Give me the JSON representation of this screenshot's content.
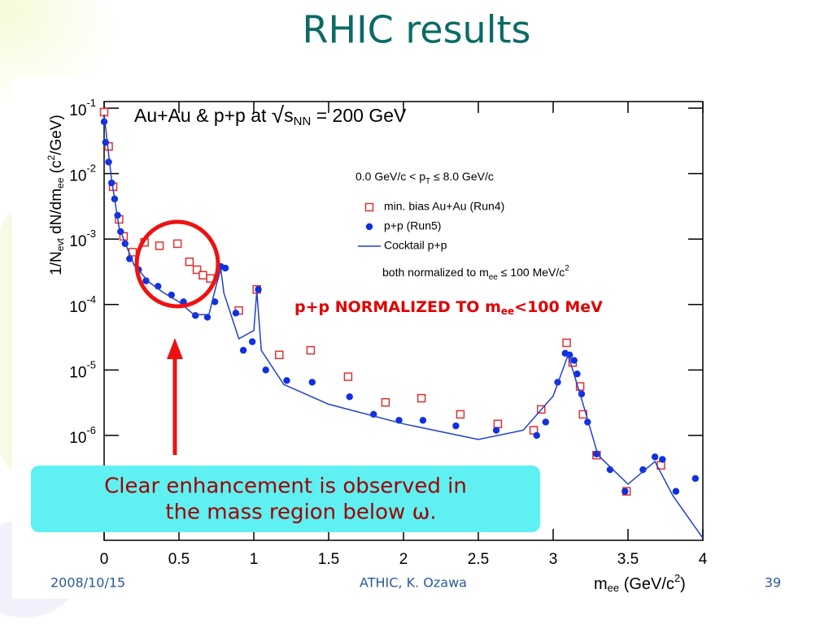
{
  "slide": {
    "title": "RHIC results",
    "date": "2008/10/15",
    "footer": "ATHIC, K. Ozawa",
    "page": "39",
    "callout": [
      "Clear enhancement is observed in",
      "the mass region below ω."
    ]
  },
  "chart_data": {
    "type": "scatter",
    "log_y": true,
    "energy_label": [
      "Au+Au & p+p at ",
      "√",
      "s",
      "NN",
      " = 200 GeV"
    ],
    "legend_header": [
      "0.0 GeV/c < p",
      "T",
      " ≤ 8.0 GeV/c"
    ],
    "legend_note": [
      "both normalized to m",
      "ee",
      " ≤ 100 MeV/c",
      "2"
    ],
    "annotation": [
      "p+p NORMALIZED TO m",
      "ee",
      "<100 MeV"
    ],
    "xlabel": [
      "m",
      "ee",
      " (GeV/c",
      "2",
      ")"
    ],
    "ylabel": [
      "1/N",
      "evt",
      " dN/dm",
      "ee",
      " (c",
      "2",
      "/GeV)"
    ],
    "xlim": [
      0,
      4
    ],
    "ylim": [
      2.5e-08,
      0.126
    ],
    "xticks": [
      0,
      0.5,
      1,
      1.5,
      2,
      2.5,
      3,
      3.5,
      4
    ],
    "yticks": [
      {
        "value": 0.1,
        "label": "10",
        "exp": "-1"
      },
      {
        "value": 0.01,
        "label": "10",
        "exp": "-2"
      },
      {
        "value": 0.001,
        "label": "10",
        "exp": "-3"
      },
      {
        "value": 0.0001,
        "label": "10",
        "exp": "-4"
      },
      {
        "value": 1e-05,
        "label": "10",
        "exp": "-5"
      },
      {
        "value": 1e-06,
        "label": "10",
        "exp": "-6"
      }
    ],
    "series": [
      {
        "name": "min. bias Au+Au (Run4)",
        "color": "#e03030",
        "marker": "open-square",
        "x": [
          0.0,
          0.03,
          0.06,
          0.1,
          0.13,
          0.19,
          0.27,
          0.37,
          0.49,
          0.57,
          0.62,
          0.66,
          0.71,
          0.9,
          1.02,
          1.17,
          1.38,
          1.63,
          1.88,
          2.12,
          2.38,
          2.63,
          2.87,
          2.92,
          3.09,
          3.13,
          3.18,
          3.2,
          3.29,
          3.49,
          3.72
        ],
        "values": [
          0.087,
          0.026,
          0.0063,
          0.002,
          0.0011,
          0.00063,
          0.00089,
          0.00079,
          0.00085,
          0.00045,
          0.00034,
          0.00028,
          0.00025,
          8.1e-05,
          0.00017,
          1.7e-05,
          2e-05,
          7.9e-06,
          3.2e-06,
          3.7e-06,
          2.1e-06,
          1.5e-06,
          1.2e-06,
          2.5e-06,
          2.6e-05,
          1.3e-05,
          5.6e-06,
          2.1e-06,
          5e-07,
          1.4e-07,
          3.5e-07
        ]
      },
      {
        "name": "p+p (Run5)",
        "color": "#1030e0",
        "marker": "dot",
        "x": [
          0.0,
          0.01,
          0.03,
          0.05,
          0.07,
          0.09,
          0.11,
          0.14,
          0.17,
          0.23,
          0.28,
          0.36,
          0.45,
          0.53,
          0.61,
          0.69,
          0.74,
          0.78,
          0.81,
          0.88,
          0.93,
          0.99,
          1.03,
          1.08,
          1.22,
          1.39,
          1.64,
          1.8,
          1.97,
          2.13,
          2.35,
          2.62,
          2.89,
          2.95,
          3.03,
          3.08,
          3.11,
          3.14,
          3.16,
          3.19,
          3.23,
          3.29,
          3.38,
          3.48,
          3.6,
          3.68,
          3.73,
          3.82,
          3.95
        ],
        "values": [
          0.062,
          0.03,
          0.015,
          0.0072,
          0.0041,
          0.0023,
          0.0013,
          0.00085,
          0.0005,
          0.00034,
          0.00023,
          0.00019,
          0.00014,
          0.00011,
          6.8e-05,
          6.4e-05,
          0.00011,
          0.00038,
          0.00036,
          7.4e-05,
          2e-05,
          2.7e-05,
          0.00017,
          1e-05,
          6.9e-06,
          6.5e-06,
          3.9e-06,
          2.1e-06,
          1.7e-06,
          1.7e-06,
          1.4e-06,
          1.2e-06,
          1e-06,
          1.6e-06,
          6.5e-06,
          1.8e-05,
          1.7e-05,
          1.4e-05,
          8.7e-06,
          4.3e-06,
          1.6e-06,
          5.2e-07,
          3e-07,
          1.4e-07,
          3e-07,
          4.7e-07,
          4.3e-07,
          1.4e-07,
          2.2e-07
        ]
      },
      {
        "name": "Cocktail p+p",
        "color": "#2040d0",
        "marker": "line",
        "x": [
          0,
          0.05,
          0.1,
          0.2,
          0.3,
          0.4,
          0.5,
          0.6,
          0.7,
          0.75,
          0.78,
          0.8,
          0.9,
          1.0,
          1.02,
          1.05,
          1.2,
          1.5,
          2.0,
          2.5,
          2.8,
          3.0,
          3.1,
          3.2,
          3.3,
          3.5,
          3.68,
          3.8,
          4.0
        ],
        "values": [
          0.08,
          0.008,
          0.0015,
          0.0004,
          0.00022,
          0.00015,
          0.00011,
          7e-05,
          7e-05,
          0.0002,
          0.00035,
          0.00015,
          3e-05,
          4e-05,
          0.00016,
          2e-05,
          6e-06,
          3e-06,
          1.5e-06,
          8.7e-07,
          1.2e-06,
          4e-06,
          1.7e-05,
          3e-06,
          5e-07,
          1.8e-07,
          4e-07,
          1.2e-07,
          2.7e-08
        ]
      }
    ]
  }
}
